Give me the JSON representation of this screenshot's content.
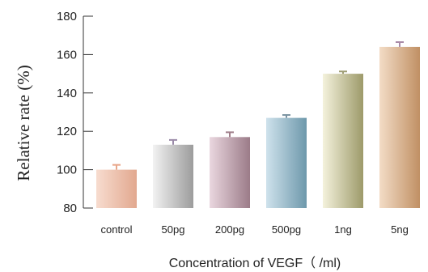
{
  "chart_data": {
    "type": "bar",
    "categories": [
      "control",
      "50pg",
      "200pg",
      "500pg",
      "1ng",
      "5ng"
    ],
    "values": [
      100,
      113,
      117,
      127,
      150,
      164
    ],
    "errors": [
      2.5,
      2.5,
      2.5,
      1.5,
      1.2,
      2.5
    ],
    "title": "",
    "xlabel": "Concentration of VEGF（ /ml)",
    "ylabel": "Relative rate (%)",
    "ylim": [
      80,
      180
    ],
    "yticks": [
      80,
      100,
      120,
      140,
      160,
      180
    ],
    "grid": false,
    "colors": {
      "control": [
        "#f7dccf",
        "#e2a88f"
      ],
      "50pg": [
        "#f2f2f2",
        "#9c9c9c"
      ],
      "200pg": [
        "#ead7df",
        "#9b7b88"
      ],
      "500pg": [
        "#cfe2ec",
        "#6d98ab"
      ],
      "1ng": [
        "#f4f2dc",
        "#9d9a6a"
      ],
      "5ng": [
        "#f3dcc6",
        "#c09064"
      ],
      "error_control": "#e8a78a",
      "error_50pg": "#9a8aa8",
      "error_200pg": "#a07e8a",
      "error_500pg": "#7a93a1",
      "error_1ng": "#9e9c74",
      "error_5ng": "#a98aa8"
    }
  }
}
